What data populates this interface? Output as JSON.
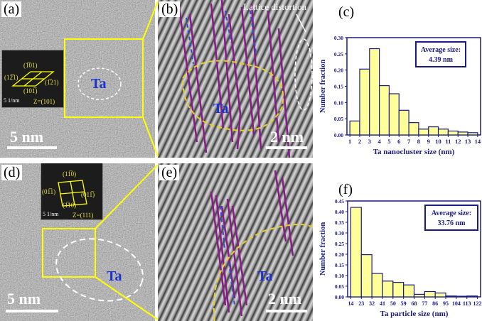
{
  "panels": {
    "a": {
      "label": "(a)",
      "scale": "5 nm",
      "ta": "Ta",
      "inset": {
        "spots": [
          "(1̅01)",
          "(12̅1)",
          "(1̅21)",
          "(101̅)"
        ],
        "scale": "5 1/nm",
        "zone": "Z=(101)"
      }
    },
    "b": {
      "label": "(b)",
      "scale": "2 nm",
      "ta": "Ta",
      "annotation": "Lattice distortion"
    },
    "c": {
      "label": "(c)"
    },
    "d": {
      "label": "(d)",
      "scale": "5 nm",
      "ta": "Ta",
      "inset": {
        "spots": [
          "(11̅0)",
          "(01̅1)",
          "(011̅)",
          "(1̅10)"
        ],
        "scale": "5 1/nm",
        "zone": "Z=(111)"
      }
    },
    "e": {
      "label": "(e)",
      "scale": "2 nm",
      "ta": "Ta"
    },
    "f": {
      "label": "(f)"
    }
  },
  "colors": {
    "bar": "#ffff99",
    "axis": "#1a1a80",
    "highlight": "#ffff00",
    "lattice_line": "#8b1a8b",
    "dash_blue": "#3050d0",
    "ta_text": "#1a33d0"
  },
  "chart_data": [
    {
      "type": "bar",
      "xlabel": "Ta nanocluster size (nm)",
      "ylabel": "Number fraction",
      "annotation": [
        "Average size:",
        "4.39 nm"
      ],
      "bin_edges": [
        1,
        2,
        3,
        4,
        5,
        6,
        7,
        8,
        9,
        10,
        11,
        12,
        13,
        14
      ],
      "xtick_labels": [
        "1",
        "2",
        "3",
        "4",
        "5",
        "6",
        "7",
        "8",
        "9",
        "10",
        "11",
        "12",
        "13",
        "14"
      ],
      "values": [
        0.043,
        0.203,
        0.266,
        0.152,
        0.127,
        0.076,
        0.038,
        0.018,
        0.025,
        0.018,
        0.012,
        0.009,
        0.007
      ],
      "ylim": [
        0,
        0.3
      ],
      "yticks": [
        "0.00",
        "0.05",
        "0.10",
        "0.15",
        "0.20",
        "0.25",
        "0.30"
      ],
      "grid": false
    },
    {
      "type": "bar",
      "xlabel": "Ta particle size (nm)",
      "ylabel": "Number fraction",
      "annotation": [
        "Average size:",
        "33.76 nm"
      ],
      "bin_edges": [
        14,
        23,
        32,
        41,
        50,
        59,
        68,
        77,
        86,
        95,
        104,
        113,
        122
      ],
      "xtick_labels": [
        "14",
        "23",
        "32",
        "41",
        "50",
        "59",
        "68",
        "77",
        "86",
        "95",
        "104",
        "113",
        "122"
      ],
      "values": [
        0.42,
        0.198,
        0.11,
        0.074,
        0.068,
        0.056,
        0.012,
        0.025,
        0.018,
        0.004,
        0.003,
        0.004
      ],
      "ylim": [
        0,
        0.45
      ],
      "yticks": [
        "0.00",
        "0.05",
        "0.10",
        "0.15",
        "0.20",
        "0.25",
        "0.30",
        "0.35",
        "0.40",
        "0.45"
      ],
      "grid": false
    }
  ]
}
